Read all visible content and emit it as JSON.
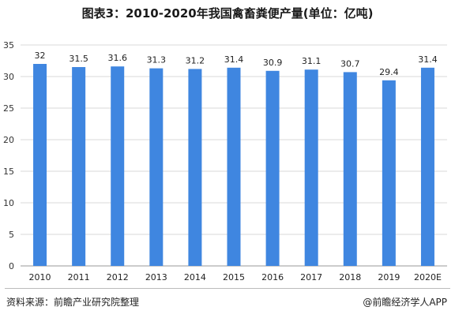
{
  "title": "图表3：2010-2020年我国禽畜粪便产量(单位：亿吨)",
  "footer": {
    "source": "资料来源：前瞻产业研究院整理",
    "brand": "@前瞻经济学人APP"
  },
  "chart_data": {
    "type": "bar",
    "title": "图表3：2010-2020年我国禽畜粪便产量(单位：亿吨)",
    "categories": [
      "2010",
      "2011",
      "2012",
      "2013",
      "2014",
      "2015",
      "2016",
      "2017",
      "2018",
      "2019",
      "2020E"
    ],
    "values": [
      32,
      31.5,
      31.6,
      31.3,
      31.2,
      31.4,
      30.9,
      31.1,
      30.7,
      29.4,
      31.4
    ],
    "labels": [
      "32",
      "31.5",
      "31.6",
      "31.3",
      "31.2",
      "31.4",
      "30.9",
      "31.1",
      "30.7",
      "29.4",
      "31.4"
    ],
    "ylim": [
      0,
      35
    ],
    "yticks": [
      0,
      5,
      10,
      15,
      20,
      25,
      30,
      35
    ],
    "grid": true,
    "bar_color": "#3f86e0",
    "xlabel": "",
    "ylabel": ""
  }
}
